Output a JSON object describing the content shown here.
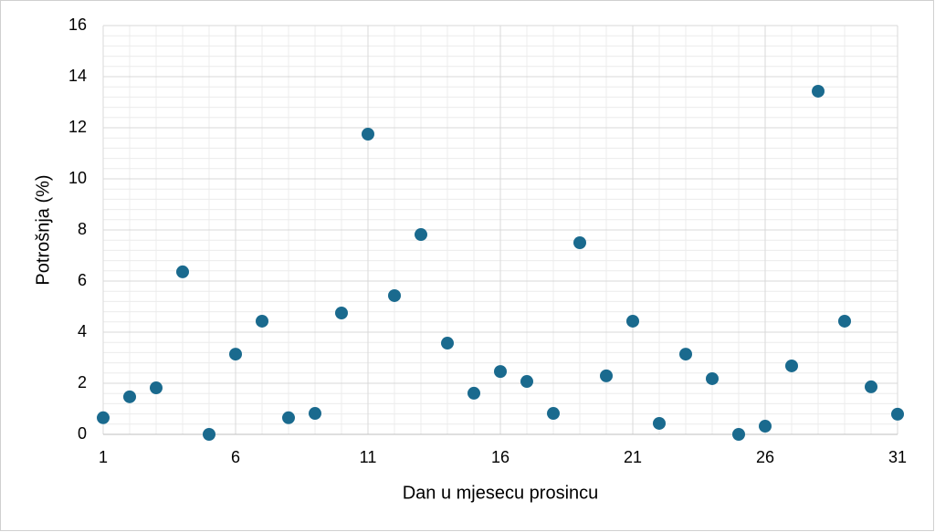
{
  "chart_data": {
    "type": "scatter",
    "x_label": "Dan u mjesecu prosincu",
    "y_label": "Potrošnja (%)",
    "x": [
      1,
      2,
      3,
      4,
      5,
      6,
      7,
      8,
      9,
      10,
      11,
      12,
      13,
      14,
      15,
      16,
      17,
      18,
      19,
      20,
      21,
      22,
      23,
      24,
      25,
      26,
      27,
      28,
      29,
      30,
      31
    ],
    "values": [
      0.65,
      1.47,
      1.82,
      6.36,
      0,
      3.14,
      4.43,
      0.65,
      0.82,
      4.75,
      11.75,
      5.43,
      7.82,
      3.57,
      1.61,
      2.46,
      2.07,
      0.82,
      7.5,
      2.29,
      4.43,
      0.43,
      3.14,
      2.18,
      0,
      0.32,
      2.68,
      13.43,
      4.43,
      1.86,
      0.79
    ],
    "color": "#1a6a8e",
    "xlim": [
      1,
      31
    ],
    "xticks": [
      1,
      6,
      11,
      16,
      21,
      26,
      31
    ],
    "ylim": [
      0,
      16
    ],
    "yticks": [
      0,
      2,
      4,
      6,
      8,
      10,
      12,
      14,
      16
    ],
    "grid": true,
    "minor_grid": true
  }
}
